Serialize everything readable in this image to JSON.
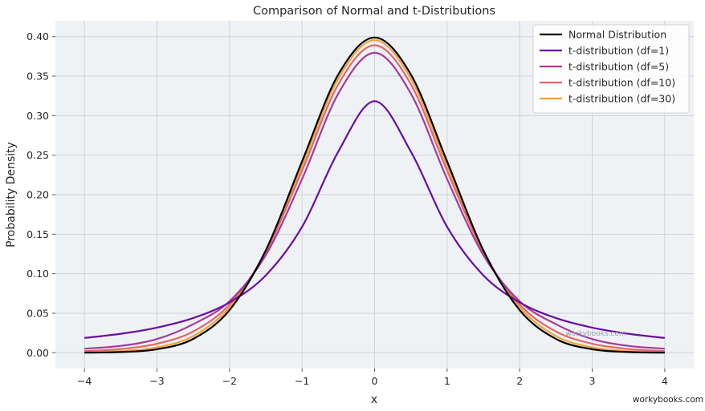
{
  "chart_data": {
    "type": "line",
    "title": "Comparison of Normal and t-Distributions",
    "xlabel": "x",
    "ylabel": "Probability Density",
    "xlim": [
      -4.4,
      4.4
    ],
    "ylim": [
      -0.02,
      0.42
    ],
    "xticks": [
      -4,
      -3,
      -2,
      -1,
      0,
      1,
      2,
      3,
      4
    ],
    "xtick_labels": [
      "−4",
      "−3",
      "−2",
      "−1",
      "0",
      "1",
      "2",
      "3",
      "4"
    ],
    "yticks": [
      0.0,
      0.05,
      0.1,
      0.15,
      0.2,
      0.25,
      0.3,
      0.35,
      0.4
    ],
    "ytick_labels": [
      "0.00",
      "0.05",
      "0.10",
      "0.15",
      "0.20",
      "0.25",
      "0.30",
      "0.35",
      "0.40"
    ],
    "grid": true,
    "legend_position": "top-right",
    "x": [
      -4,
      -3.5,
      -3,
      -2.5,
      -2,
      -1.5,
      -1,
      -0.5,
      0,
      0.5,
      1,
      1.5,
      2,
      2.5,
      3,
      3.5,
      4
    ],
    "series": [
      {
        "name": "Normal Distribution",
        "color": "#000000",
        "values": [
          0.0001,
          0.0009,
          0.0044,
          0.0175,
          0.054,
          0.1295,
          0.242,
          0.3521,
          0.3989,
          0.3521,
          0.242,
          0.1295,
          0.054,
          0.0175,
          0.0044,
          0.0009,
          0.0001
        ]
      },
      {
        "name": "t-distribution (df=1)",
        "color": "#6a0da0",
        "values": [
          0.0187,
          0.024,
          0.0318,
          0.0439,
          0.0637,
          0.0979,
          0.1592,
          0.2546,
          0.3183,
          0.2546,
          0.1592,
          0.0979,
          0.0637,
          0.0439,
          0.0318,
          0.024,
          0.0187
        ]
      },
      {
        "name": "t-distribution (df=5)",
        "color": "#a43a9a",
        "values": [
          0.0051,
          0.0087,
          0.0173,
          0.0361,
          0.0651,
          0.1235,
          0.2197,
          0.3279,
          0.3796,
          0.3279,
          0.2197,
          0.1235,
          0.0651,
          0.0361,
          0.0173,
          0.0087,
          0.0051
        ]
      },
      {
        "name": "t-distribution (df=10)",
        "color": "#e0686a",
        "values": [
          0.002,
          0.0047,
          0.0114,
          0.0269,
          0.0611,
          0.1274,
          0.2304,
          0.3397,
          0.3891,
          0.3397,
          0.2304,
          0.1274,
          0.0611,
          0.0269,
          0.0114,
          0.0047,
          0.002
        ]
      },
      {
        "name": "t-distribution (df=30)",
        "color": "#f3a23a",
        "values": [
          0.0004,
          0.002,
          0.0068,
          0.0211,
          0.0577,
          0.1288,
          0.2366,
          0.3469,
          0.3956,
          0.3469,
          0.2366,
          0.1288,
          0.0577,
          0.0211,
          0.0068,
          0.002,
          0.0004
        ]
      }
    ],
    "watermark": "workybooks.com"
  },
  "footer": {
    "credit": "workybooks.com"
  }
}
